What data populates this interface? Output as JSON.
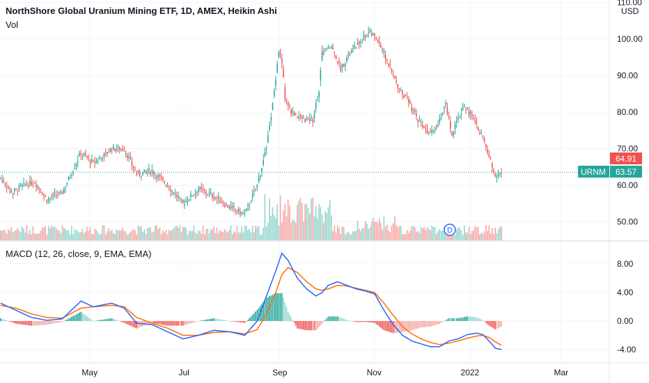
{
  "header": {
    "title": "NorthShore Global Uranium Mining ETF, 1D, AMEX, Heikin Ashi",
    "vol_label": "Vol",
    "currency": "USD"
  },
  "price_axis": {
    "ticks": [
      "110.00",
      "100.00",
      "90.00",
      "80.00",
      "70.00",
      "60.00",
      "50.00"
    ],
    "tick_values": [
      110,
      100,
      90,
      80,
      70,
      60,
      50
    ],
    "range": [
      45,
      110
    ]
  },
  "badges": {
    "open_price": "64.91",
    "symbol": "URNM",
    "last_price": "63.57"
  },
  "macd": {
    "label": "MACD (12, 26, close, 9, EMA, EMA)",
    "ticks": [
      "8.00",
      "4.00",
      "0.00",
      "-4.00"
    ],
    "tick_values": [
      8,
      4,
      0,
      -4
    ],
    "range": [
      -5,
      10
    ]
  },
  "time_axis": {
    "labels": [
      "May",
      "Jul",
      "Sep",
      "Nov",
      "2022",
      "Mar"
    ],
    "label_days": [
      58,
      119,
      181,
      242,
      304,
      363
    ]
  },
  "dividend_marker": "D",
  "colors": {
    "up": "#26a69a",
    "down": "#ef5350",
    "vol_up": "#94d4cd",
    "vol_down": "#f5a6a4",
    "macd_line": "#2962ff",
    "signal_line": "#ff6d00",
    "last_line": "#26a69a",
    "grid": "#f0f3fa"
  },
  "chart_data": {
    "type": "candlestick",
    "x_axis": "day index",
    "price_close_keypoints": [
      [
        0,
        62
      ],
      [
        8,
        58
      ],
      [
        15,
        60
      ],
      [
        22,
        61
      ],
      [
        30,
        56
      ],
      [
        40,
        58
      ],
      [
        52,
        69
      ],
      [
        60,
        66
      ],
      [
        72,
        70
      ],
      [
        80,
        70
      ],
      [
        88,
        63
      ],
      [
        98,
        64
      ],
      [
        108,
        60
      ],
      [
        118,
        55
      ],
      [
        128,
        59
      ],
      [
        138,
        57
      ],
      [
        148,
        54
      ],
      [
        158,
        52
      ],
      [
        166,
        60
      ],
      [
        172,
        70
      ],
      [
        176,
        82
      ],
      [
        180,
        97
      ],
      [
        182,
        94
      ],
      [
        184,
        84
      ],
      [
        188,
        80
      ],
      [
        196,
        78
      ],
      [
        202,
        78
      ],
      [
        206,
        86
      ],
      [
        208,
        96
      ],
      [
        214,
        98
      ],
      [
        220,
        92
      ],
      [
        226,
        96
      ],
      [
        232,
        99
      ],
      [
        238,
        102
      ],
      [
        244,
        100
      ],
      [
        250,
        94
      ],
      [
        256,
        88
      ],
      [
        262,
        84
      ],
      [
        270,
        78
      ],
      [
        276,
        75
      ],
      [
        282,
        76
      ],
      [
        288,
        82
      ],
      [
        292,
        74
      ],
      [
        296,
        78
      ],
      [
        300,
        82
      ],
      [
        306,
        78
      ],
      [
        312,
        73
      ],
      [
        316,
        68
      ],
      [
        320,
        63
      ],
      [
        324,
        63.57
      ]
    ],
    "macd_keypoints": [
      [
        0,
        2.5
      ],
      [
        10,
        1.5
      ],
      [
        20,
        0.5
      ],
      [
        30,
        0.1
      ],
      [
        40,
        0.3
      ],
      [
        52,
        2.8
      ],
      [
        60,
        2.0
      ],
      [
        72,
        2.5
      ],
      [
        80,
        1.8
      ],
      [
        88,
        -0.3
      ],
      [
        98,
        -0.5
      ],
      [
        108,
        -1.5
      ],
      [
        118,
        -2.5
      ],
      [
        128,
        -2.0
      ],
      [
        138,
        -1.3
      ],
      [
        148,
        -1.5
      ],
      [
        158,
        -2.0
      ],
      [
        166,
        0.0
      ],
      [
        172,
        3.5
      ],
      [
        178,
        7.0
      ],
      [
        182,
        9.5
      ],
      [
        186,
        8.5
      ],
      [
        192,
        6.0
      ],
      [
        198,
        4.5
      ],
      [
        204,
        3.5
      ],
      [
        208,
        4.0
      ],
      [
        212,
        5.0
      ],
      [
        218,
        5.5
      ],
      [
        224,
        5.0
      ],
      [
        230,
        4.5
      ],
      [
        236,
        4.2
      ],
      [
        242,
        3.8
      ],
      [
        248,
        1.5
      ],
      [
        254,
        -0.5
      ],
      [
        260,
        -2.0
      ],
      [
        266,
        -2.8
      ],
      [
        272,
        -3.2
      ],
      [
        278,
        -3.6
      ],
      [
        284,
        -3.6
      ],
      [
        290,
        -2.8
      ],
      [
        296,
        -2.5
      ],
      [
        302,
        -1.9
      ],
      [
        308,
        -1.7
      ],
      [
        312,
        -1.9
      ],
      [
        316,
        -2.8
      ],
      [
        320,
        -3.8
      ],
      [
        324,
        -4.0
      ]
    ],
    "signal_keypoints": [
      [
        0,
        2.2
      ],
      [
        10,
        1.8
      ],
      [
        20,
        1.0
      ],
      [
        30,
        0.5
      ],
      [
        40,
        0.4
      ],
      [
        52,
        1.8
      ],
      [
        60,
        2.0
      ],
      [
        72,
        2.2
      ],
      [
        80,
        2.0
      ],
      [
        88,
        0.5
      ],
      [
        98,
        -0.3
      ],
      [
        108,
        -1.0
      ],
      [
        118,
        -2.0
      ],
      [
        128,
        -2.0
      ],
      [
        138,
        -1.6
      ],
      [
        148,
        -1.5
      ],
      [
        158,
        -1.8
      ],
      [
        166,
        -1.2
      ],
      [
        172,
        1.0
      ],
      [
        178,
        4.0
      ],
      [
        182,
        6.5
      ],
      [
        186,
        7.5
      ],
      [
        192,
        6.8
      ],
      [
        198,
        5.5
      ],
      [
        204,
        4.5
      ],
      [
        208,
        4.3
      ],
      [
        212,
        4.5
      ],
      [
        218,
        5.0
      ],
      [
        224,
        4.9
      ],
      [
        230,
        4.6
      ],
      [
        236,
        4.3
      ],
      [
        242,
        4.0
      ],
      [
        248,
        2.5
      ],
      [
        254,
        0.8
      ],
      [
        260,
        -0.8
      ],
      [
        266,
        -1.8
      ],
      [
        272,
        -2.5
      ],
      [
        278,
        -3.0
      ],
      [
        284,
        -3.3
      ],
      [
        290,
        -3.1
      ],
      [
        296,
        -2.8
      ],
      [
        302,
        -2.4
      ],
      [
        308,
        -2.1
      ],
      [
        312,
        -2.0
      ],
      [
        316,
        -2.3
      ],
      [
        320,
        -2.9
      ],
      [
        324,
        -3.4
      ]
    ]
  }
}
